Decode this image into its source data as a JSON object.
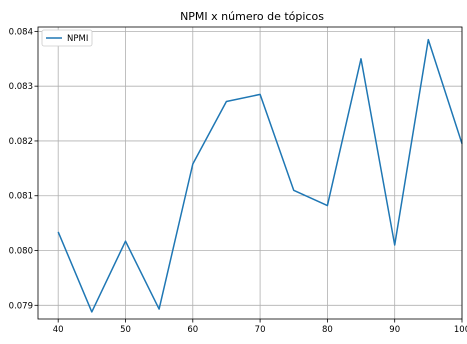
{
  "chart_data": {
    "type": "line",
    "title": "NPMI x número de tópicos",
    "xlabel": "",
    "ylabel": "",
    "x": [
      40,
      45,
      50,
      55,
      60,
      65,
      70,
      75,
      80,
      85,
      90,
      95,
      100
    ],
    "series": [
      {
        "name": "NPMI",
        "color": "#1f77b4",
        "values": [
          0.08034,
          0.07888,
          0.08017,
          0.07893,
          0.08158,
          0.08272,
          0.08285,
          0.0811,
          0.08082,
          0.0835,
          0.0801,
          0.08385,
          0.08195
        ]
      }
    ],
    "xticks": [
      "40",
      "50",
      "60",
      "70",
      "80",
      "90",
      "100"
    ],
    "xtick_values": [
      40,
      50,
      60,
      70,
      80,
      90,
      100
    ],
    "yticks": [
      "0.079",
      "0.080",
      "0.081",
      "0.082",
      "0.083",
      "0.084"
    ],
    "ytick_values": [
      0.079,
      0.08,
      0.081,
      0.082,
      0.083,
      0.084
    ],
    "xlim": [
      37,
      100
    ],
    "ylim": [
      0.07875,
      0.08408
    ],
    "grid": true,
    "legend_position": "top-left"
  }
}
